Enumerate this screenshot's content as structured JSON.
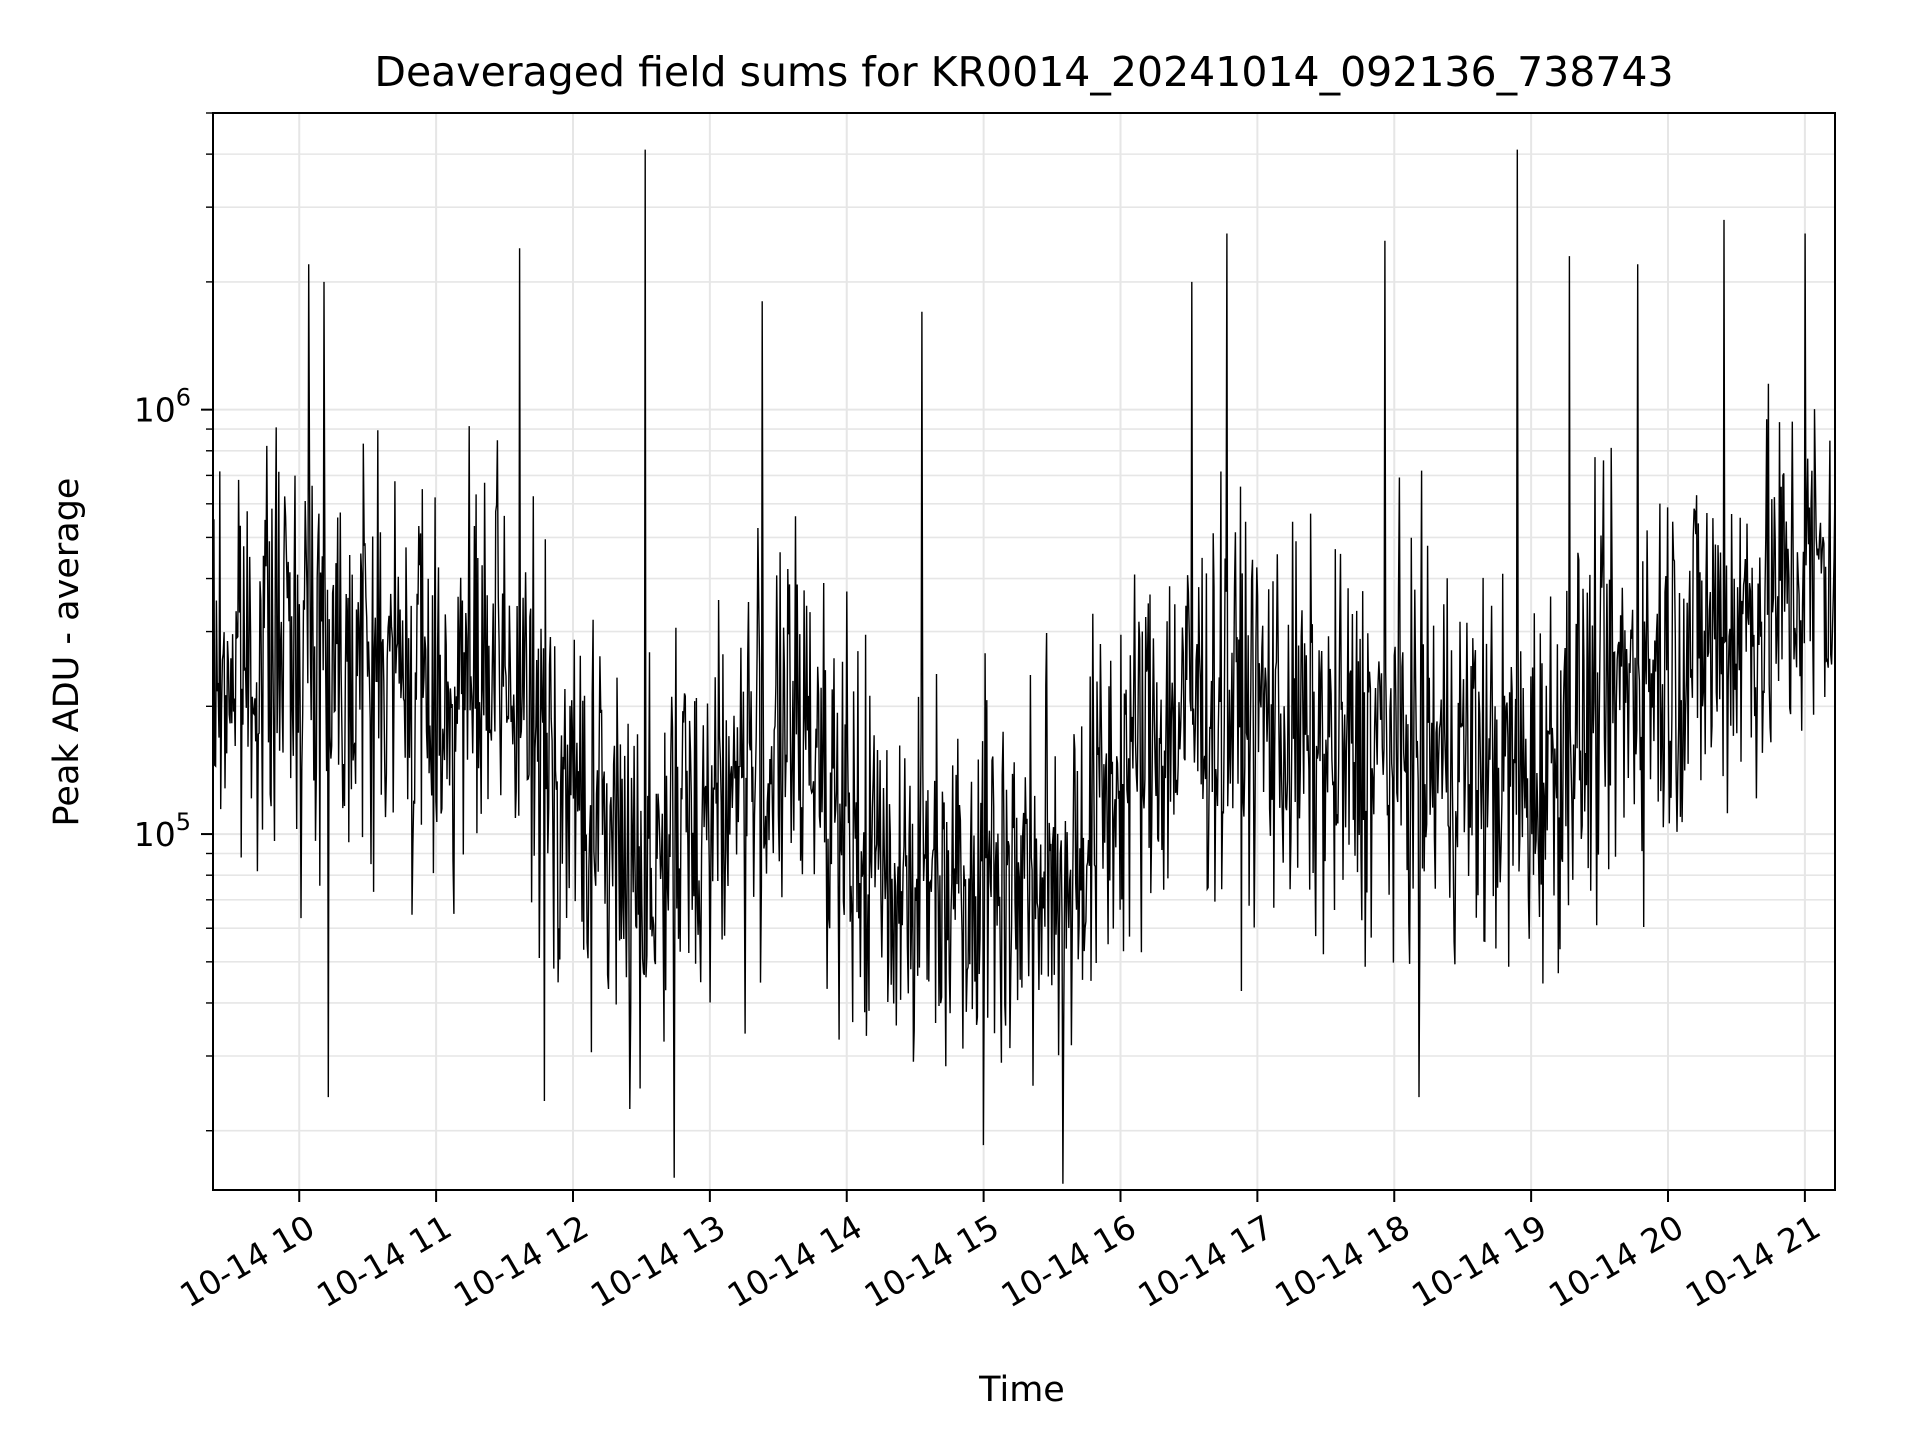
{
  "chart_data": {
    "type": "line",
    "title": "Deaveraged field sums for KR0014_20241014_092136_738743",
    "xlabel": "Time",
    "ylabel": "Peak ADU - average",
    "x_tick_labels": [
      "10-14 10",
      "10-14 11",
      "10-14 12",
      "10-14 13",
      "10-14 14",
      "10-14 15",
      "10-14 16",
      "10-14 17",
      "10-14 18",
      "10-14 19",
      "10-14 20",
      "10-14 21"
    ],
    "x_tick_hours": [
      10,
      11,
      12,
      13,
      14,
      15,
      16,
      17,
      18,
      19,
      20,
      21
    ],
    "xlim_hours": [
      9.37,
      21.22
    ],
    "y_scale": "log",
    "ylim": [
      14500,
      5000000
    ],
    "y_tick_labels": [
      {
        "value": 100000,
        "base": "10",
        "exp": "5"
      },
      {
        "value": 1000000,
        "base": "10",
        "exp": "6"
      }
    ],
    "grid": true,
    "line_color": "#000000",
    "grid_color": "#e6e6e6",
    "series": [
      {
        "trend_hours": [
          9.37,
          10.0,
          10.5,
          11.0,
          11.5,
          12.0,
          12.5,
          13.0,
          13.5,
          13.8,
          14.0,
          14.5,
          15.0,
          15.4,
          15.6,
          16.0,
          16.5,
          17.0,
          17.5,
          18.0,
          18.5,
          19.0,
          19.5,
          20.0,
          20.5,
          21.0,
          21.22
        ],
        "trend_values": [
          230000,
          300000,
          260000,
          210000,
          230000,
          120000,
          80000,
          120000,
          160000,
          180000,
          90000,
          80000,
          85000,
          75000,
          80000,
          140000,
          200000,
          200000,
          150000,
          160000,
          150000,
          130000,
          200000,
          260000,
          310000,
          400000,
          430000
        ],
        "spikes": [
          {
            "hour": 10.07,
            "value": 2200000
          },
          {
            "hour": 10.18,
            "value": 2000000
          },
          {
            "hour": 11.61,
            "value": 2400000
          },
          {
            "hour": 12.53,
            "value": 4100000
          },
          {
            "hour": 13.38,
            "value": 1800000
          },
          {
            "hour": 14.55,
            "value": 1700000
          },
          {
            "hour": 16.52,
            "value": 2000000
          },
          {
            "hour": 16.78,
            "value": 2600000
          },
          {
            "hour": 17.93,
            "value": 2500000
          },
          {
            "hour": 18.9,
            "value": 4100000
          },
          {
            "hour": 19.28,
            "value": 2300000
          },
          {
            "hour": 19.78,
            "value": 2200000
          },
          {
            "hour": 20.41,
            "value": 2800000
          },
          {
            "hour": 21.0,
            "value": 2600000
          },
          {
            "hour": 10.21,
            "value": 24000
          },
          {
            "hour": 11.79,
            "value": 23500
          },
          {
            "hour": 12.74,
            "value": 15500
          },
          {
            "hour": 15.0,
            "value": 18500
          },
          {
            "hour": 15.58,
            "value": 15000
          },
          {
            "hour": 18.18,
            "value": 24000
          }
        ]
      }
    ]
  }
}
